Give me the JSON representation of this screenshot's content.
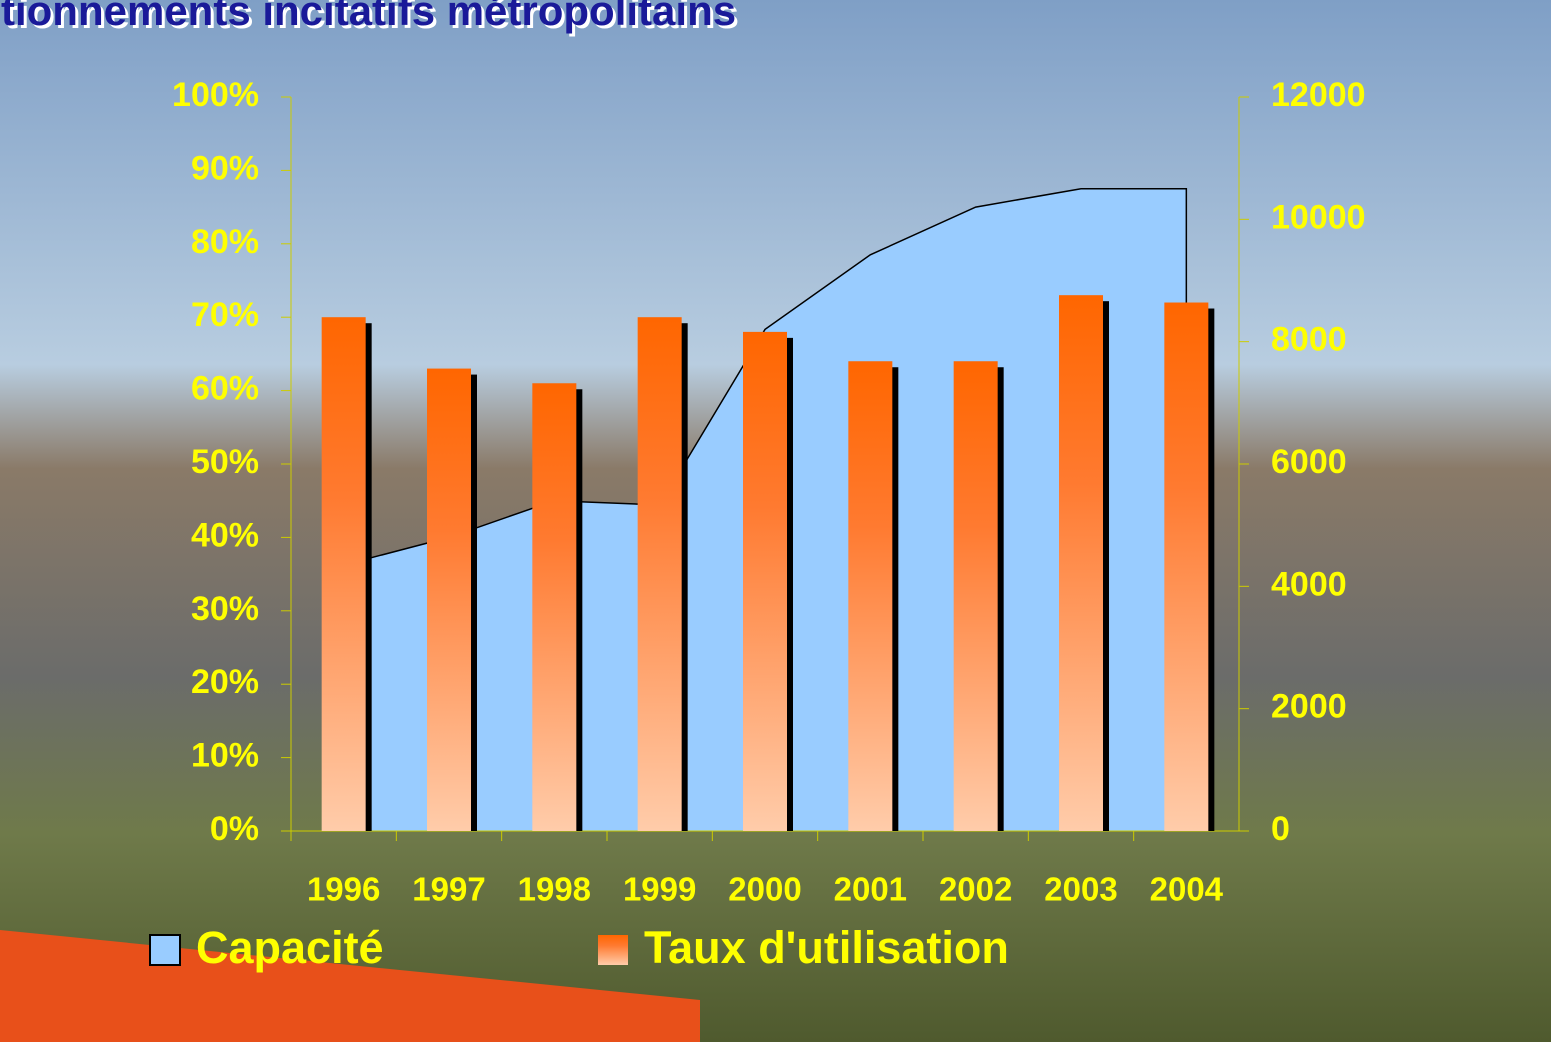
{
  "chart_data": {
    "type": "bar",
    "title": "tionnements incitatifs métropolitains",
    "categories": [
      "1996",
      "1997",
      "1998",
      "1999",
      "2000",
      "2001",
      "2002",
      "2003",
      "2004"
    ],
    "series": [
      {
        "name": "Capacité",
        "type": "area",
        "axis": "y2",
        "color": "#99ccff",
        "values": [
          4350,
          4800,
          5400,
          5330,
          8200,
          9420,
          10200,
          10500,
          10500
        ]
      },
      {
        "name": "Taux d'utilisation",
        "type": "bar",
        "color": "#ff6600",
        "values": [
          70,
          63,
          61,
          70,
          68,
          64,
          64,
          73,
          72
        ]
      }
    ],
    "ylim": [
      0,
      100
    ],
    "yticks": [
      {
        "value": 0,
        "label": "0%"
      },
      {
        "value": 10,
        "label": "10%"
      },
      {
        "value": 20,
        "label": "20%"
      },
      {
        "value": 30,
        "label": "30%"
      },
      {
        "value": 40,
        "label": "40%"
      },
      {
        "value": 50,
        "label": "50%"
      },
      {
        "value": 60,
        "label": "60%"
      },
      {
        "value": 70,
        "label": "70%"
      },
      {
        "value": 80,
        "label": "80%"
      },
      {
        "value": 90,
        "label": "90%"
      },
      {
        "value": 100,
        "label": "100%"
      }
    ],
    "y2lim": [
      0,
      12000
    ],
    "y2ticks": [
      0,
      2000,
      4000,
      6000,
      8000,
      10000,
      12000
    ],
    "legend": "bottom"
  }
}
